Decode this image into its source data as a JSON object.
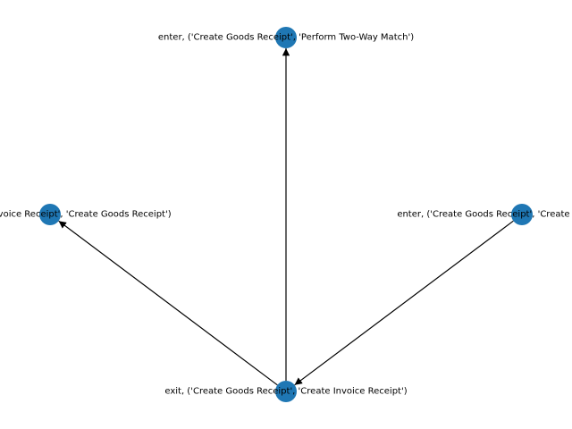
{
  "graph": {
    "node_color": "#1f77b4",
    "edge_color": "#000000",
    "nodes": [
      {
        "id": "n_top",
        "label": "enter, ('Create Goods Receipt', 'Perform Two-Way Match')"
      },
      {
        "id": "n_left",
        "label": "exit, ('Create Invoice Receipt', 'Create Goods Receipt')"
      },
      {
        "id": "n_right",
        "label": "enter, ('Create Goods Receipt', 'Create Invoice Receipt')"
      },
      {
        "id": "n_bottom",
        "label": "exit, ('Create Goods Receipt', 'Create Invoice Receipt')"
      }
    ],
    "edges": [
      {
        "source": "n_bottom",
        "target": "n_top"
      },
      {
        "source": "n_bottom",
        "target": "n_left"
      },
      {
        "source": "n_right",
        "target": "n_bottom"
      }
    ]
  }
}
